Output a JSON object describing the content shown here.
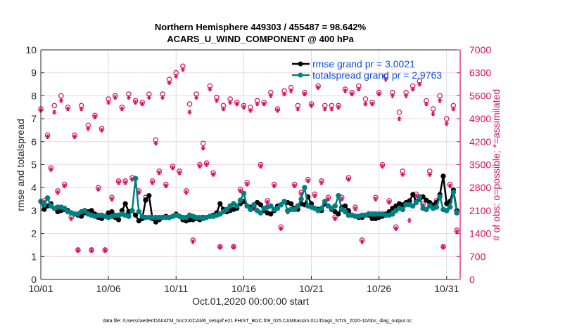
{
  "chart_data": {
    "type": "line",
    "title": "Northern Hemisphere 449303 / 455487 = 98.642%",
    "subtitle": "ACARS_U_WIND_COMPONENT @ 400 hPa",
    "xlabel": "Oct.01,2020 00:00:00 start",
    "ylabel": "rmse and totalspread",
    "ylabel_right": "# of obs: o=possible; *=assimilated",
    "footnote": "data file: /Users/raeder/DAI/ATM_forcXX/CAM6_setup/f.e21.FHIST_BGC.f09_025.CAM6assim.011/Diags_NTrS_2020-10/obs_diag_output.nc",
    "xlim": [
      0,
      31
    ],
    "ylim": [
      0,
      10
    ],
    "ylim_right": [
      0,
      7000
    ],
    "grid": "horizontal",
    "legend_position": "top-right",
    "x_ticks": [
      0,
      5,
      10,
      15,
      20,
      25,
      30
    ],
    "x_tick_labels": [
      "10/01",
      "10/06",
      "10/11",
      "10/16",
      "10/21",
      "10/26",
      "10/31"
    ],
    "y_ticks": [
      0,
      1,
      2,
      3,
      4,
      5,
      6,
      7,
      8,
      9,
      10
    ],
    "y_tick_labels": [
      "0",
      "1",
      "2",
      "3",
      "4",
      "5",
      "6",
      "7",
      "8",
      "9",
      "10"
    ],
    "y_ticks_right": [
      0,
      700,
      1400,
      2100,
      2800,
      3500,
      4200,
      4900,
      5600,
      6300,
      7000
    ],
    "y_tick_labels_right": [
      "0",
      "700",
      "1400",
      "2100",
      "2800",
      "3500",
      "4200",
      "4900",
      "5600",
      "6300",
      "7000"
    ],
    "x_step_days": 0.25,
    "series": [
      {
        "name": "rmse grand pr = 3.0021",
        "color": "#000000",
        "values": [
          3.4,
          3.05,
          3.2,
          3.3,
          3.1,
          2.95,
          3.0,
          3.05,
          3.0,
          2.9,
          2.85,
          2.8,
          2.75,
          2.9,
          2.95,
          3.0,
          2.85,
          2.7,
          2.65,
          2.75,
          2.9,
          2.95,
          2.7,
          2.6,
          3.0,
          3.3,
          2.95,
          3.0,
          2.8,
          2.55,
          2.65,
          3.45,
          3.65,
          2.65,
          2.5,
          2.6,
          2.7,
          2.75,
          2.7,
          2.75,
          2.85,
          2.75,
          2.6,
          2.55,
          2.6,
          2.6,
          2.65,
          2.6,
          2.7,
          2.7,
          2.75,
          2.8,
          2.9,
          3.3,
          3.05,
          2.95,
          3.0,
          3.05,
          3.1,
          3.3,
          3.4,
          3.2,
          3.15,
          3.2,
          3.35,
          3.25,
          3.0,
          2.9,
          2.85,
          3.0,
          3.2,
          3.25,
          3.4,
          3.35,
          3.3,
          3.1,
          3.05,
          3.3,
          3.25,
          3.6,
          3.3,
          3.1,
          3.05,
          3.0,
          3.3,
          3.2,
          3.05,
          2.95,
          2.85,
          3.15,
          3.2,
          3.0,
          2.8,
          2.75,
          2.7,
          2.7,
          2.8,
          2.8,
          2.65,
          2.65,
          2.7,
          2.75,
          2.85,
          2.95,
          3.1,
          3.2,
          3.3,
          3.25,
          3.35,
          3.4,
          3.7,
          3.4,
          3.5,
          3.6,
          3.45,
          3.35,
          3.25,
          3.35,
          3.7,
          4.5,
          3.3,
          3.4,
          3.9,
          3.0
        ]
      },
      {
        "name": "totalspread grand pr = 2.9763",
        "color": "#008080",
        "values": [
          3.4,
          3.25,
          3.55,
          3.2,
          3.1,
          3.15,
          3.15,
          3.1,
          2.95,
          2.9,
          2.85,
          2.85,
          2.95,
          3.0,
          2.85,
          2.8,
          2.75,
          2.8,
          2.8,
          2.75,
          2.7,
          2.75,
          2.8,
          2.8,
          2.85,
          2.8,
          2.75,
          3.0,
          4.4,
          2.95,
          2.75,
          2.7,
          2.7,
          2.7,
          2.7,
          2.7,
          2.7,
          2.7,
          2.7,
          2.75,
          2.8,
          2.75,
          2.7,
          2.7,
          2.8,
          2.75,
          2.7,
          2.7,
          2.65,
          2.7,
          2.75,
          2.75,
          2.8,
          2.85,
          2.95,
          3.05,
          3.2,
          3.3,
          3.2,
          3.45,
          3.75,
          3.2,
          3.05,
          3.25,
          3.0,
          2.9,
          3.1,
          3.15,
          3.2,
          3.05,
          3.1,
          3.25,
          3.4,
          3.0,
          3.05,
          3.05,
          3.2,
          3.5,
          4.0,
          3.2,
          3.15,
          3.1,
          3.0,
          3.1,
          3.4,
          3.2,
          3.1,
          3.2,
          3.65,
          3.05,
          2.95,
          2.8,
          2.8,
          2.75,
          2.75,
          2.8,
          2.8,
          2.85,
          2.85,
          2.85,
          2.85,
          2.85,
          2.8,
          2.8,
          2.85,
          3.0,
          3.1,
          3.05,
          3.25,
          3.25,
          3.2,
          3.35,
          3.6,
          3.1,
          3.05,
          3.2,
          3.1,
          3.15,
          3.6,
          3.05,
          3.0,
          3.15,
          3.8,
          2.9
        ]
      }
    ],
    "obs_possible": {
      "name": "possible (o)",
      "color": "#d6105f",
      "values": [
        5200,
        2400,
        4400,
        3400,
        5300,
        2700,
        5600,
        2900,
        5250,
        1900,
        4400,
        900,
        5300,
        2100,
        4700,
        900,
        5000,
        2800,
        4600,
        900,
        5500,
        2500,
        5600,
        3000,
        5250,
        3000,
        5650,
        3100,
        5450,
        2700,
        5400,
        2500,
        5650,
        3000,
        4250,
        3300,
        5650,
        2900,
        6100,
        3450,
        6300,
        3300,
        6500,
        2700,
        5350,
        1200,
        5650,
        3500,
        4150,
        3550,
        5900,
        3250,
        5550,
        1000,
        5300,
        2100,
        5500,
        1000,
        5400,
        2750,
        5300,
        2950,
        5250,
        2200,
        5450,
        3500,
        5400,
        2400,
        5700,
        2900,
        5200,
        1600,
        5750,
        2100,
        5850,
        2900,
        5300,
        2650,
        5700,
        3050,
        5350,
        2600,
        5900,
        3000,
        5300,
        2500,
        5300,
        1900,
        5300,
        2500,
        5800,
        3100,
        5700,
        2200,
        5900,
        1200,
        5500,
        2000,
        5400,
        2500,
        5700,
        3500,
        6200,
        2400,
        5700,
        1600,
        5100,
        3300,
        5700,
        2400,
        5900,
        2600,
        6050,
        2300,
        5450,
        3300,
        5200,
        2400,
        5600,
        1000,
        4900,
        2900,
        5300,
        1500
      ]
    },
    "obs_assimilated": {
      "name": "assimilated (*)",
      "color": "#d6105f",
      "values": [
        5150,
        2350,
        4350,
        3350,
        5100,
        2650,
        5450,
        2850,
        5200,
        1850,
        4350,
        880,
        5200,
        2050,
        4600,
        880,
        4950,
        2750,
        4550,
        880,
        5400,
        2450,
        5550,
        2950,
        5200,
        2950,
        5550,
        3050,
        5400,
        2650,
        5350,
        2450,
        5550,
        2950,
        4150,
        3250,
        5550,
        2850,
        6000,
        3400,
        6200,
        3250,
        6400,
        2650,
        5100,
        1150,
        5550,
        3450,
        4000,
        3500,
        5800,
        3200,
        5450,
        980,
        5200,
        2050,
        5400,
        980,
        5350,
        2700,
        5250,
        2900,
        5150,
        2150,
        5350,
        3450,
        5350,
        2350,
        5600,
        2850,
        5150,
        1550,
        5650,
        2050,
        5750,
        2850,
        5200,
        2600,
        5650,
        3000,
        5300,
        2550,
        5850,
        2950,
        5200,
        2450,
        5200,
        1850,
        5250,
        2450,
        5750,
        3050,
        5650,
        2150,
        5800,
        1150,
        5350,
        1950,
        5350,
        2450,
        5650,
        3450,
        6100,
        2350,
        5600,
        1550,
        4900,
        3200,
        5600,
        1800,
        5800,
        2550,
        5950,
        2250,
        5350,
        3200,
        5050,
        2350,
        5450,
        980,
        4750,
        2850,
        5200,
        1450
      ]
    }
  }
}
